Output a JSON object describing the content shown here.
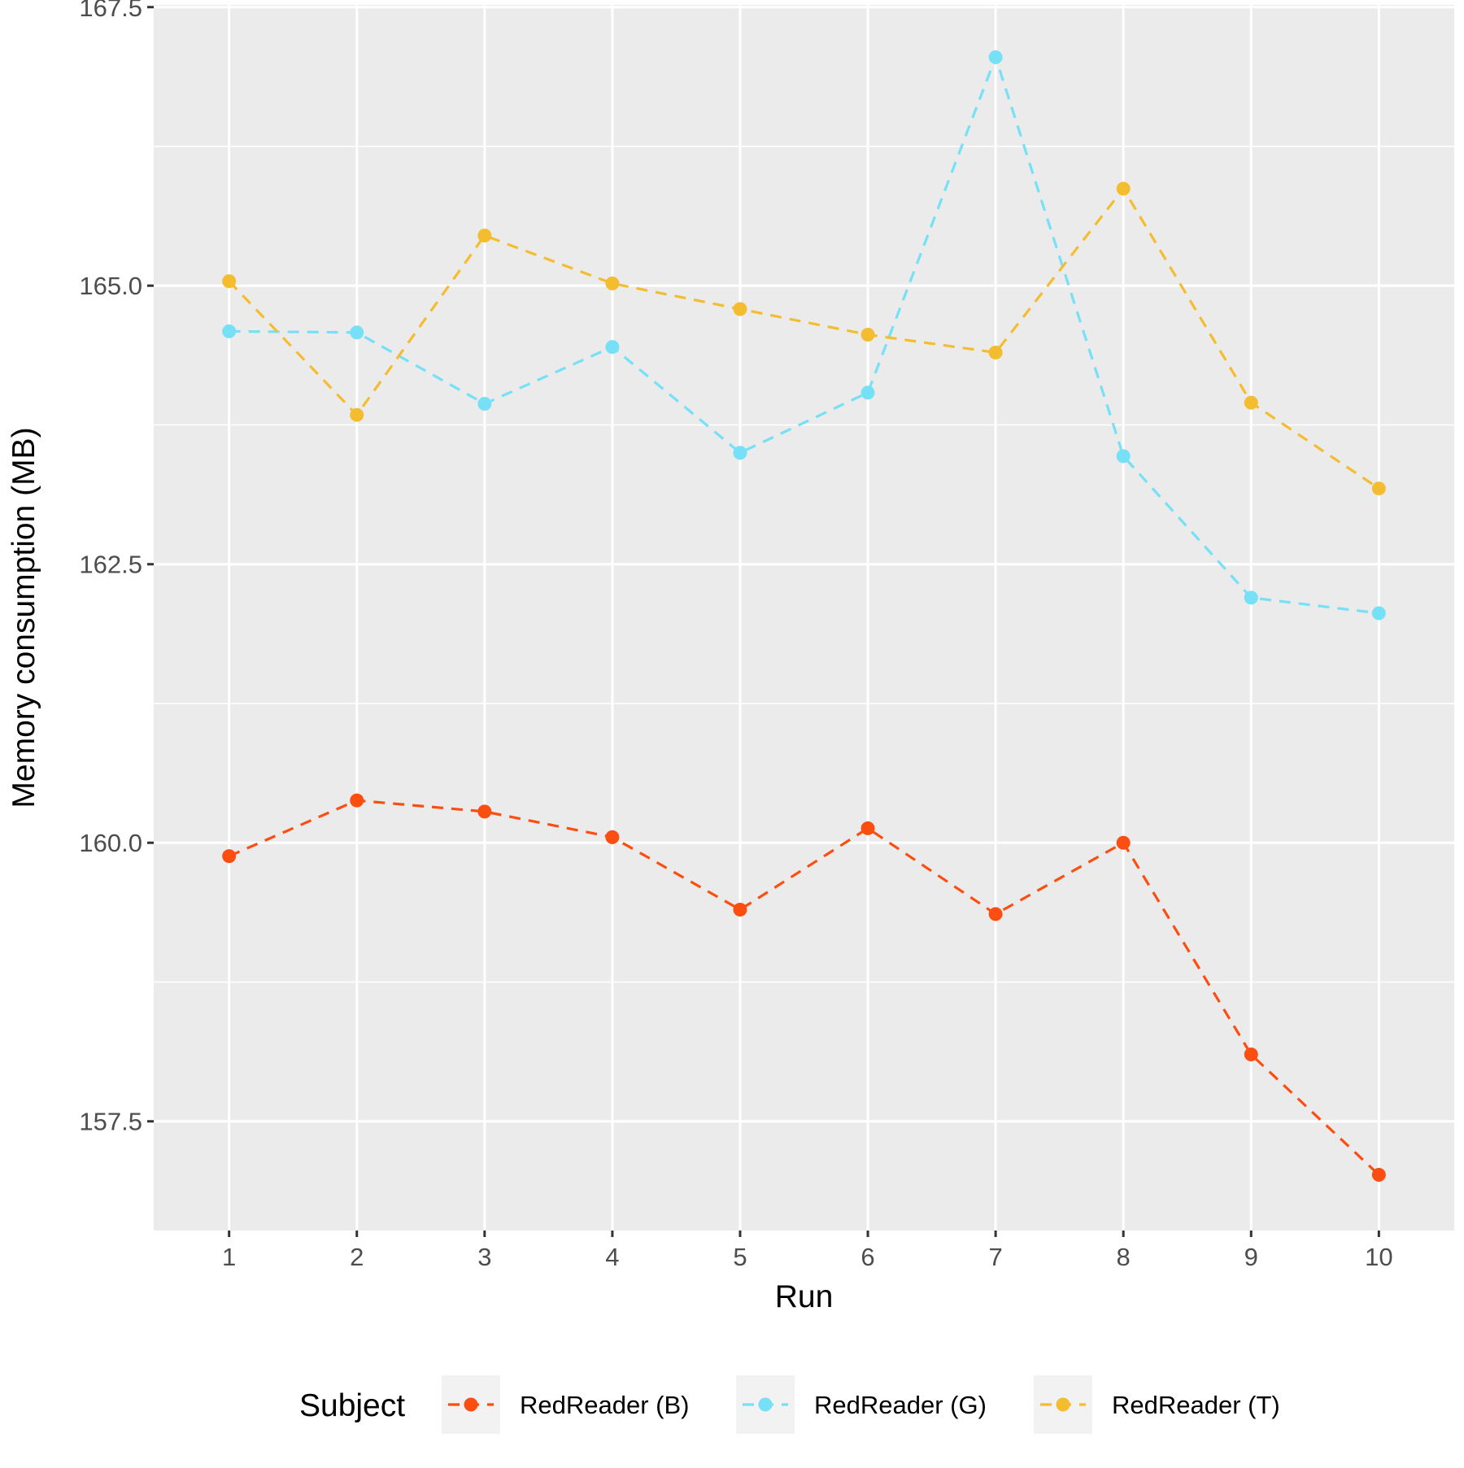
{
  "chart_data": {
    "type": "line",
    "title": "",
    "xlabel": "Run",
    "ylabel": "Memory consumption (MB)",
    "x": [
      1,
      2,
      3,
      4,
      5,
      6,
      7,
      8,
      9,
      10
    ],
    "x_tick_labels": [
      "1",
      "2",
      "3",
      "4",
      "5",
      "6",
      "7",
      "8",
      "9",
      "10"
    ],
    "xlim": [
      0.41,
      10.59
    ],
    "ylim": [
      156.52,
      167.52
    ],
    "y_ticks": [
      157.5,
      160.0,
      162.5,
      165.0,
      167.5
    ],
    "y_tick_labels": [
      "157.5",
      "160.0",
      "162.5",
      "165.0",
      "167.5"
    ],
    "grid": true,
    "panel_background": "#ebebeb",
    "grid_color": "#ffffff",
    "line_style": "dashed",
    "legend": {
      "title": "Subject",
      "position": "bottom"
    },
    "series": [
      {
        "name": "RedReader (B)",
        "color": "#fc4e11",
        "values": [
          159.88,
          160.38,
          160.28,
          160.05,
          159.4,
          160.13,
          159.36,
          160.0,
          158.1,
          157.02
        ]
      },
      {
        "name": "RedReader (G)",
        "color": "#76e0f7",
        "values": [
          164.59,
          164.58,
          163.94,
          164.45,
          163.5,
          164.04,
          167.05,
          163.47,
          162.2,
          162.06
        ]
      },
      {
        "name": "RedReader (T)",
        "color": "#f4bd30",
        "values": [
          165.04,
          163.84,
          165.45,
          165.02,
          164.79,
          164.56,
          164.4,
          165.87,
          163.95,
          163.18
        ]
      }
    ]
  }
}
